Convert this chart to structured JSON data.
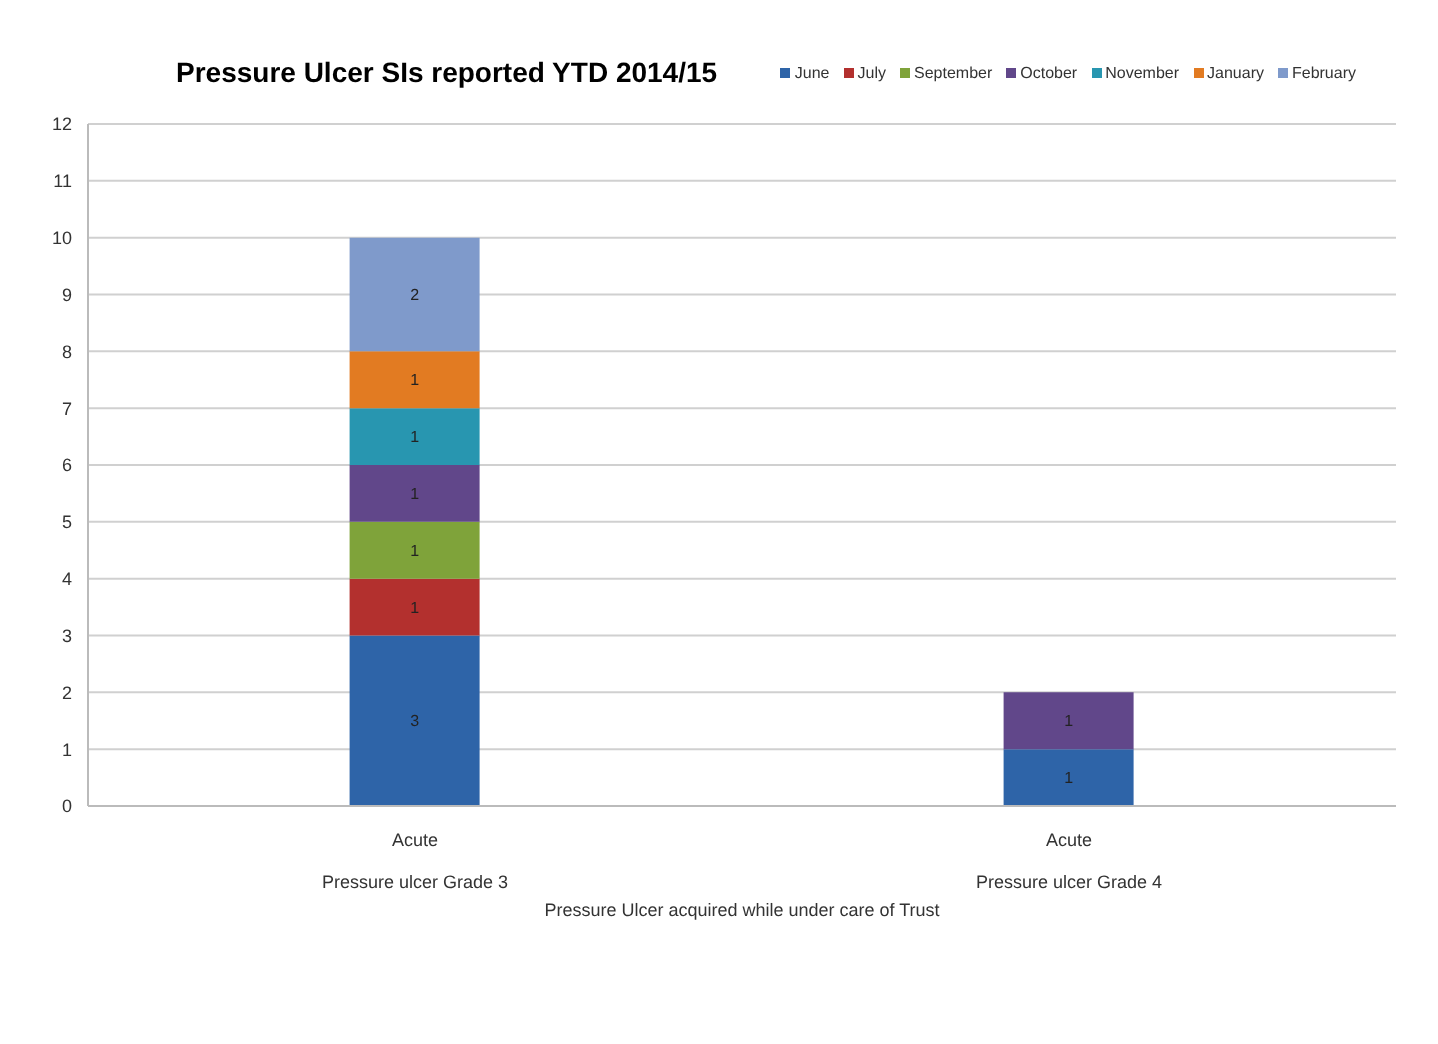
{
  "chart_data": {
    "type": "bar",
    "title": "Pressure Ulcer SIs reported YTD 2014/15",
    "xlabel": "Pressure Ulcer acquired while under care of Trust",
    "annotations": [
      "Pressure ulcer Grade 3",
      "Pressure ulcer Grade 4"
    ],
    "categories": [
      "Acute",
      "Acute"
    ],
    "stacked": true,
    "data_labels": true,
    "grid": "y",
    "legend": "top right",
    "ylim": [
      0,
      12
    ],
    "yticks": [
      0,
      1,
      2,
      3,
      4,
      5,
      6,
      7,
      8,
      9,
      10,
      11,
      12
    ],
    "series": [
      {
        "name": "June",
        "color": "#2e64a8",
        "values": [
          3,
          1
        ]
      },
      {
        "name": "July",
        "color": "#b3302e",
        "values": [
          1,
          null
        ]
      },
      {
        "name": "September",
        "color": "#7fa33a",
        "values": [
          1,
          null
        ]
      },
      {
        "name": "October",
        "color": "#61478a",
        "values": [
          1,
          1
        ]
      },
      {
        "name": "November",
        "color": "#2896b0",
        "values": [
          1,
          null
        ]
      },
      {
        "name": "January",
        "color": "#e27b22",
        "values": [
          1,
          null
        ]
      },
      {
        "name": "February",
        "color": "#7f9acb",
        "values": [
          2,
          null
        ]
      }
    ]
  }
}
